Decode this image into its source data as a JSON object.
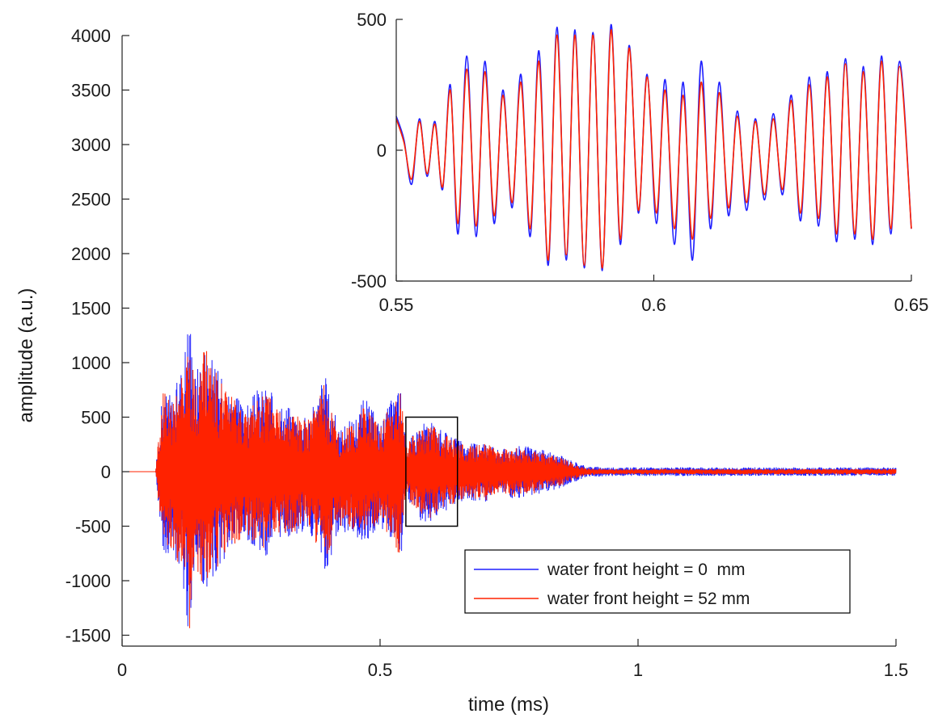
{
  "colors": {
    "series_blue": "#1f1fff",
    "series_red": "#ff2200",
    "axis": "#222222",
    "zoom_box": "#000000",
    "background": "#ffffff"
  },
  "chart_data": [
    {
      "type": "line",
      "xlabel": "time (ms)",
      "ylabel": "amplitude (a.u.)",
      "xlim": [
        0,
        1.5
      ],
      "ylim": [
        -1600,
        4000
      ],
      "xticks": [
        0,
        0.5,
        1,
        1.5
      ],
      "xtick_labels": [
        "0",
        "0.5",
        "1",
        "1.5"
      ],
      "yticks": [
        -1500,
        -1000,
        -500,
        0,
        500,
        1000,
        1500,
        2000,
        2500,
        3000,
        3500,
        4000
      ],
      "ytick_labels": [
        "-1500",
        "-1000",
        "-500",
        "0",
        "500",
        "1000",
        "1500",
        "2000",
        "2500",
        "3000",
        "3500",
        "4000"
      ],
      "grid": false,
      "legend_position": "bottom-right",
      "series": [
        {
          "name": "water front height = 0  mm",
          "color": "#1f1fff",
          "envelope": {
            "x": [
              0,
              0.065,
              0.07,
              0.08,
              0.1,
              0.12,
              0.13,
              0.14,
              0.16,
              0.18,
              0.2,
              0.22,
              0.24,
              0.26,
              0.28,
              0.3,
              0.33,
              0.36,
              0.38,
              0.39,
              0.42,
              0.45,
              0.47,
              0.5,
              0.53,
              0.54,
              0.55,
              0.58,
              0.6,
              0.62,
              0.65,
              0.67,
              0.7,
              0.73,
              0.76,
              0.8,
              0.85,
              0.9,
              0.95,
              1.0,
              1.1,
              1.2,
              1.3,
              1.4,
              1.5
            ],
            "upper": [
              0,
              0,
              300,
              800,
              700,
              1100,
              1600,
              900,
              1200,
              1000,
              800,
              700,
              600,
              750,
              800,
              650,
              600,
              500,
              700,
              950,
              400,
              500,
              700,
              450,
              750,
              800,
              250,
              470,
              450,
              380,
              300,
              250,
              300,
              200,
              250,
              220,
              150,
              50,
              40,
              40,
              40,
              40,
              40,
              40,
              40
            ],
            "lower": [
              0,
              0,
              -300,
              -800,
              -750,
              -1100,
              -1550,
              -900,
              -1150,
              -950,
              -850,
              -700,
              -650,
              -700,
              -800,
              -650,
              -600,
              -550,
              -750,
              -1000,
              -550,
              -600,
              -650,
              -500,
              -750,
              -850,
              -250,
              -470,
              -460,
              -380,
              -300,
              -250,
              -300,
              -200,
              -250,
              -220,
              -150,
              -50,
              -40,
              -40,
              -40,
              -40,
              -40,
              -40,
              -40
            ]
          }
        },
        {
          "name": "water front height = 52 mm",
          "color": "#ff2200",
          "envelope": {
            "x": [
              0,
              0.065,
              0.07,
              0.08,
              0.1,
              0.12,
              0.13,
              0.14,
              0.16,
              0.18,
              0.2,
              0.22,
              0.24,
              0.26,
              0.28,
              0.3,
              0.33,
              0.36,
              0.38,
              0.39,
              0.42,
              0.45,
              0.47,
              0.5,
              0.53,
              0.54,
              0.55,
              0.58,
              0.6,
              0.62,
              0.65,
              0.67,
              0.7,
              0.73,
              0.76,
              0.8,
              0.85,
              0.9,
              0.95,
              1.0,
              1.1,
              1.2,
              1.3,
              1.4,
              1.5
            ],
            "upper": [
              0,
              0,
              280,
              750,
              650,
              1050,
              1200,
              850,
              1150,
              950,
              750,
              650,
              560,
              700,
              750,
              600,
              560,
              470,
              650,
              850,
              380,
              470,
              650,
              420,
              700,
              770,
              230,
              450,
              430,
              360,
              280,
              230,
              280,
              190,
              230,
              200,
              130,
              30,
              25,
              25,
              25,
              25,
              25,
              25,
              25
            ],
            "lower": [
              0,
              0,
              -280,
              -750,
              -700,
              -1050,
              -1500,
              -850,
              -1100,
              -900,
              -800,
              -650,
              -600,
              -650,
              -750,
              -600,
              -560,
              -500,
              -700,
              -900,
              -500,
              -550,
              -600,
              -460,
              -700,
              -780,
              -230,
              -440,
              -430,
              -360,
              -280,
              -230,
              -280,
              -190,
              -230,
              -200,
              -130,
              -30,
              -25,
              -25,
              -25,
              -25,
              -25,
              -25,
              -25
            ]
          }
        }
      ],
      "zoom_region": {
        "x": [
          0.55,
          0.65
        ],
        "y": [
          -500,
          500
        ]
      }
    },
    {
      "type": "line",
      "inset": true,
      "xlim": [
        0.55,
        0.65
      ],
      "ylim": [
        -500,
        500
      ],
      "xticks": [
        0.55,
        0.6,
        0.65
      ],
      "xtick_labels": [
        "0.55",
        "0.6",
        "0.65"
      ],
      "yticks": [
        -500,
        0,
        500
      ],
      "ytick_labels": [
        "-500",
        "0",
        "500"
      ],
      "grid": false,
      "series": [
        {
          "name": "water front height = 0  mm",
          "color": "#1f1fff",
          "x": [
            0.55,
            0.5515,
            0.553,
            0.5545,
            0.556,
            0.5575,
            0.559,
            0.5605,
            0.562,
            0.5637,
            0.5655,
            0.5672,
            0.569,
            0.5707,
            0.5725,
            0.5742,
            0.576,
            0.5777,
            0.5795,
            0.5812,
            0.583,
            0.5847,
            0.5865,
            0.5882,
            0.59,
            0.5917,
            0.5935,
            0.5952,
            0.597,
            0.5987,
            0.6005,
            0.6022,
            0.604,
            0.6057,
            0.6075,
            0.6092,
            0.611,
            0.6127,
            0.6145,
            0.6162,
            0.618,
            0.6197,
            0.6215,
            0.6232,
            0.625,
            0.6267,
            0.6285,
            0.6302,
            0.632,
            0.6337,
            0.6355,
            0.6372,
            0.639,
            0.6407,
            0.6425,
            0.6442,
            0.646,
            0.6477,
            0.65
          ],
          "y": [
            130,
            40,
            -130,
            120,
            -100,
            110,
            -150,
            250,
            -320,
            360,
            -330,
            340,
            -280,
            230,
            -220,
            290,
            -330,
            380,
            -440,
            470,
            -420,
            460,
            -450,
            450,
            -460,
            480,
            -360,
            400,
            -240,
            290,
            -280,
            270,
            -360,
            260,
            -420,
            340,
            -300,
            260,
            -250,
            150,
            -230,
            120,
            -190,
            140,
            -170,
            210,
            -270,
            280,
            -290,
            300,
            -350,
            350,
            -340,
            320,
            -360,
            360,
            -320,
            340,
            -300
          ]
        },
        {
          "name": "water front height = 52 mm",
          "color": "#ff2200",
          "x": [
            0.55,
            0.5515,
            0.553,
            0.5545,
            0.556,
            0.5575,
            0.559,
            0.5605,
            0.562,
            0.5637,
            0.5655,
            0.5672,
            0.569,
            0.5707,
            0.5725,
            0.5742,
            0.576,
            0.5777,
            0.5795,
            0.5812,
            0.583,
            0.5847,
            0.5865,
            0.5882,
            0.59,
            0.5917,
            0.5935,
            0.5952,
            0.597,
            0.5987,
            0.6005,
            0.6022,
            0.604,
            0.6057,
            0.6075,
            0.6092,
            0.611,
            0.6127,
            0.6145,
            0.6162,
            0.618,
            0.6197,
            0.6215,
            0.6232,
            0.625,
            0.6267,
            0.6285,
            0.6302,
            0.632,
            0.6337,
            0.6355,
            0.6372,
            0.639,
            0.6407,
            0.6425,
            0.6442,
            0.646,
            0.6477,
            0.65
          ],
          "y": [
            120,
            30,
            -110,
            110,
            -90,
            100,
            -140,
            230,
            -280,
            310,
            -290,
            300,
            -250,
            210,
            -200,
            260,
            -300,
            340,
            -420,
            440,
            -400,
            440,
            -440,
            440,
            -450,
            460,
            -340,
            390,
            -230,
            280,
            -240,
            230,
            -300,
            210,
            -340,
            260,
            -260,
            220,
            -220,
            130,
            -200,
            110,
            -170,
            120,
            -150,
            190,
            -240,
            250,
            -260,
            280,
            -320,
            330,
            -320,
            300,
            -340,
            340,
            -300,
            320,
            -300
          ]
        }
      ]
    }
  ]
}
